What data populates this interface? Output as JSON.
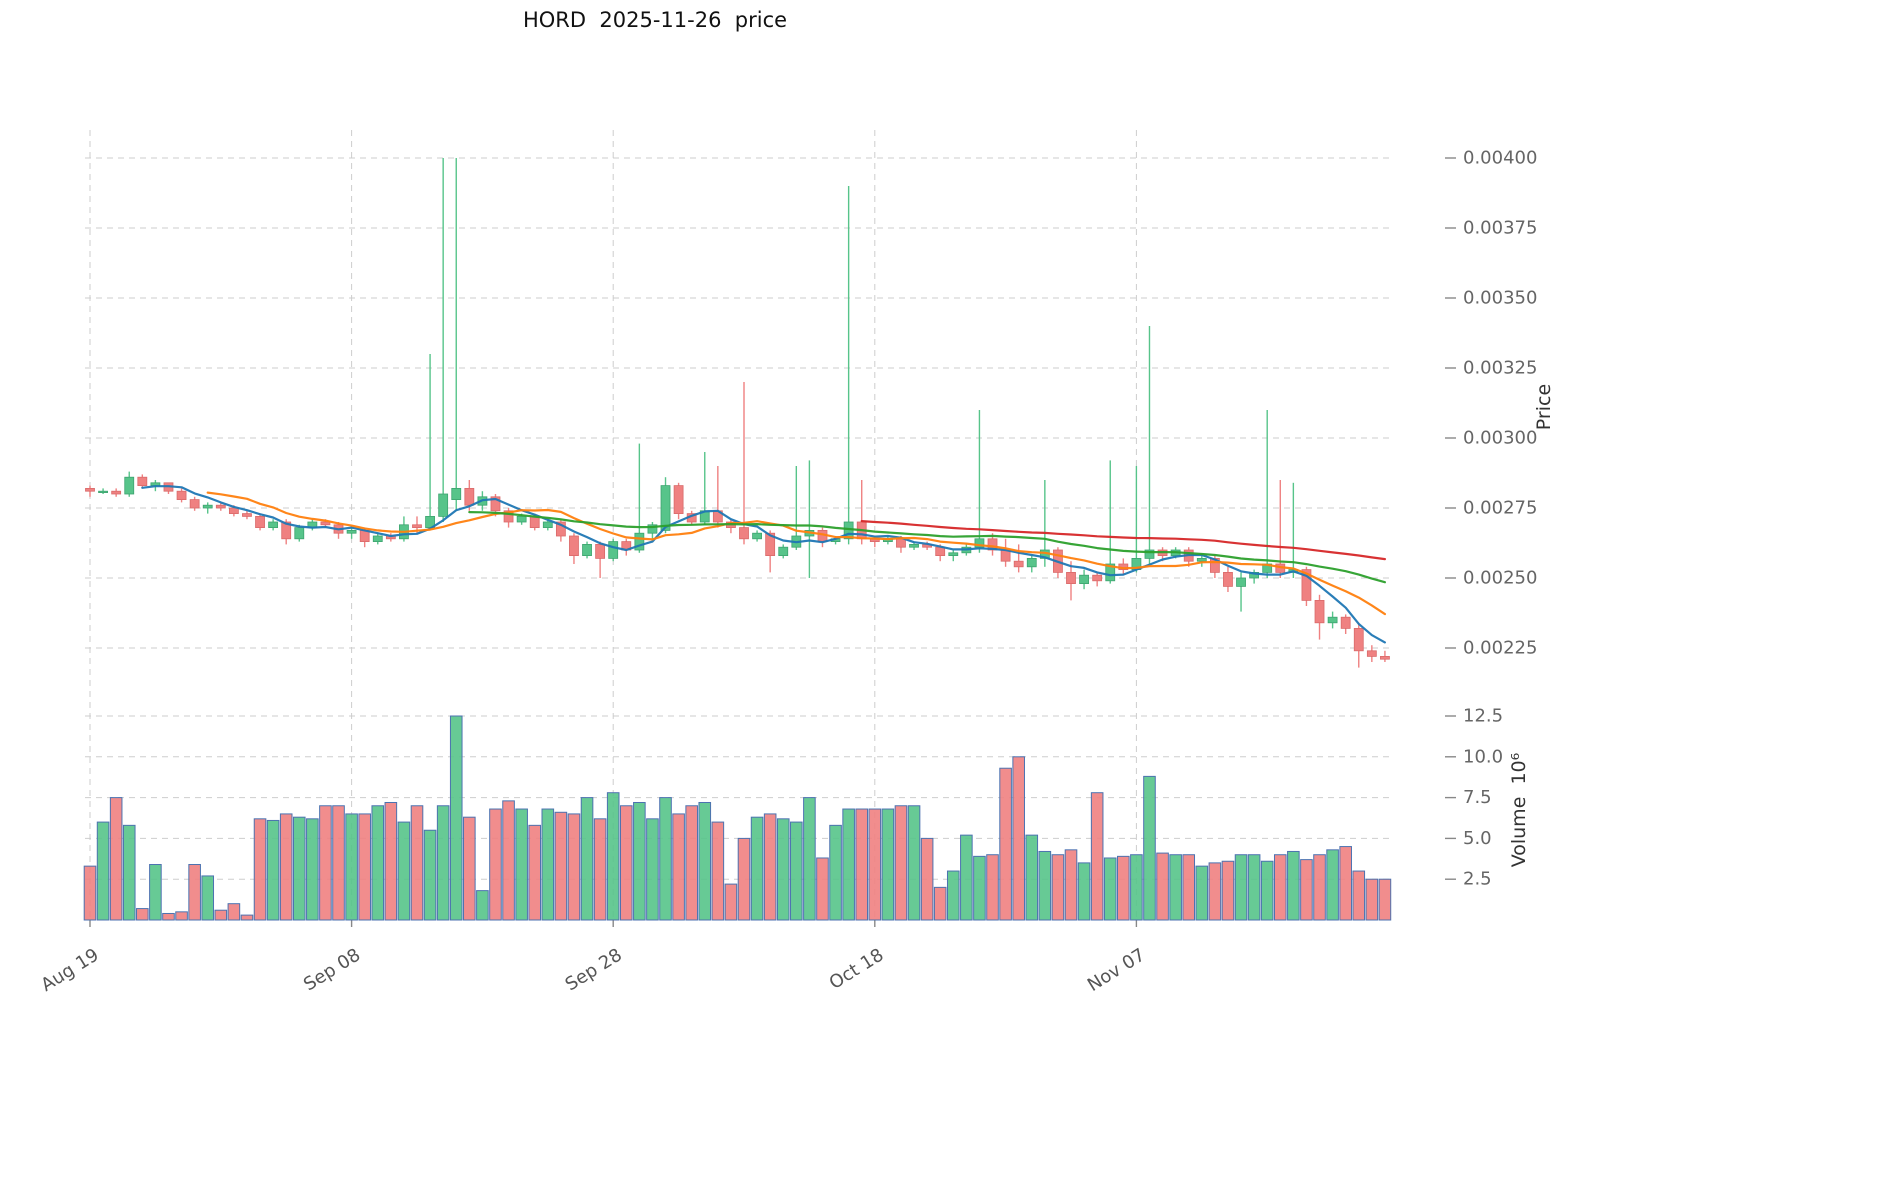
{
  "title": "HORD  2025-11-26  price",
  "axes": {
    "price_label": "Price",
    "volume_label": "Volume  10⁶",
    "price_tick_values": [
      0.004,
      0.00375,
      0.0035,
      0.00325,
      0.003,
      0.00275,
      0.0025,
      0.00225
    ],
    "price_tick_labels": [
      "0.00400",
      "0.00375",
      "0.00350",
      "0.00325",
      "0.00300",
      "0.00275",
      "0.00250",
      "0.00225"
    ],
    "volume_tick_values": [
      12.5,
      10.0,
      7.5,
      5.0,
      2.5
    ],
    "volume_tick_labels": [
      "12.5",
      "10.0",
      "7.5",
      "5.0",
      "2.5"
    ],
    "x_ticks": [
      {
        "index": 0,
        "label": "Aug 19"
      },
      {
        "index": 20,
        "label": "Sep 08"
      },
      {
        "index": 40,
        "label": "Sep 28"
      },
      {
        "index": 60,
        "label": "Oct 18"
      },
      {
        "index": 80,
        "label": "Nov 07"
      }
    ]
  },
  "chart_data": {
    "type": "candlestick",
    "title": "HORD 2025-11-26 price",
    "xlabel": "",
    "ylabel": "Price",
    "ylabel_volume": "Volume 10^6",
    "grid": true,
    "price_ylim": [
      0.00212,
      0.0041
    ],
    "volume_ylim": [
      0,
      13.5
    ],
    "volume_unit": "millions",
    "colors": {
      "up": "#57c48a",
      "down": "#ef8181",
      "up_edge": "#3da46f",
      "down_edge": "#d96a6a",
      "volume_edge": "#4c72b0",
      "grid": "#cdcdcd",
      "tick_text": "#666666",
      "ma": [
        "#1f77b4",
        "#ff7f0e",
        "#2ca02c",
        "#d62728"
      ]
    },
    "moving_averages": [
      {
        "name": "MA5",
        "window": 5,
        "color": "#1f77b4"
      },
      {
        "name": "MA10",
        "window": 10,
        "color": "#ff7f0e"
      },
      {
        "name": "MA30",
        "window": 30,
        "color": "#2ca02c"
      },
      {
        "name": "MA60",
        "window": 60,
        "color": "#d62728"
      }
    ],
    "columns": [
      "date",
      "open",
      "high",
      "low",
      "close",
      "volume_millions"
    ],
    "rows": [
      [
        "2025-08-19",
        0.00282,
        0.00283,
        0.00279,
        0.00281,
        3.3
      ],
      [
        "2025-08-20",
        0.00281,
        0.00282,
        0.0028,
        0.00281,
        6.0
      ],
      [
        "2025-08-21",
        0.00281,
        0.00282,
        0.00279,
        0.0028,
        7.5
      ],
      [
        "2025-08-22",
        0.0028,
        0.00288,
        0.00279,
        0.00286,
        5.8
      ],
      [
        "2025-08-23",
        0.00286,
        0.00287,
        0.00282,
        0.00283,
        0.7
      ],
      [
        "2025-08-24",
        0.00283,
        0.00285,
        0.00281,
        0.00284,
        3.4
      ],
      [
        "2025-08-25",
        0.00284,
        0.00284,
        0.0028,
        0.00281,
        0.4
      ],
      [
        "2025-08-26",
        0.00281,
        0.00282,
        0.00277,
        0.00278,
        0.5
      ],
      [
        "2025-08-27",
        0.00278,
        0.00279,
        0.00274,
        0.00275,
        3.4
      ],
      [
        "2025-08-28",
        0.00275,
        0.00277,
        0.00273,
        0.00276,
        2.7
      ],
      [
        "2025-08-29",
        0.00276,
        0.00277,
        0.00274,
        0.00275,
        0.6
      ],
      [
        "2025-08-30",
        0.00275,
        0.00276,
        0.00272,
        0.00273,
        1.0
      ],
      [
        "2025-08-31",
        0.00273,
        0.00274,
        0.00271,
        0.00272,
        0.3
      ],
      [
        "2025-09-01",
        0.00272,
        0.00273,
        0.00267,
        0.00268,
        6.2
      ],
      [
        "2025-09-02",
        0.00268,
        0.00271,
        0.00267,
        0.0027,
        6.1
      ],
      [
        "2025-09-03",
        0.0027,
        0.00271,
        0.00262,
        0.00264,
        6.5
      ],
      [
        "2025-09-04",
        0.00264,
        0.00269,
        0.00263,
        0.00268,
        6.3
      ],
      [
        "2025-09-05",
        0.00268,
        0.00271,
        0.00267,
        0.0027,
        6.2
      ],
      [
        "2025-09-06",
        0.0027,
        0.00271,
        0.00268,
        0.00269,
        7.0
      ],
      [
        "2025-09-07",
        0.00269,
        0.0027,
        0.00264,
        0.00266,
        7.0
      ],
      [
        "2025-09-08",
        0.00266,
        0.00268,
        0.00264,
        0.00267,
        6.5
      ],
      [
        "2025-09-09",
        0.00267,
        0.00268,
        0.00261,
        0.00263,
        6.5
      ],
      [
        "2025-09-10",
        0.00263,
        0.00266,
        0.00262,
        0.00265,
        7.0
      ],
      [
        "2025-09-11",
        0.00265,
        0.00266,
        0.00263,
        0.00264,
        7.2
      ],
      [
        "2025-09-12",
        0.00264,
        0.00272,
        0.00263,
        0.00269,
        6.0
      ],
      [
        "2025-09-13",
        0.00269,
        0.00272,
        0.00266,
        0.00268,
        7.0
      ],
      [
        "2025-09-14",
        0.00268,
        0.0033,
        0.00267,
        0.00272,
        5.5
      ],
      [
        "2025-09-15",
        0.00272,
        0.004,
        0.0027,
        0.0028,
        7.0
      ],
      [
        "2025-09-16",
        0.00278,
        0.004,
        0.00274,
        0.00282,
        12.5
      ],
      [
        "2025-09-17",
        0.00282,
        0.00285,
        0.00274,
        0.00276,
        6.3
      ],
      [
        "2025-09-18",
        0.00276,
        0.00281,
        0.00274,
        0.00279,
        1.8
      ],
      [
        "2025-09-19",
        0.00279,
        0.0028,
        0.00272,
        0.00274,
        6.8
      ],
      [
        "2025-09-20",
        0.00274,
        0.00275,
        0.00268,
        0.0027,
        7.3
      ],
      [
        "2025-09-21",
        0.0027,
        0.00273,
        0.00269,
        0.00272,
        6.8
      ],
      [
        "2025-09-22",
        0.00272,
        0.00273,
        0.00267,
        0.00268,
        5.8
      ],
      [
        "2025-09-23",
        0.00268,
        0.00271,
        0.00267,
        0.0027,
        6.8
      ],
      [
        "2025-09-24",
        0.0027,
        0.00271,
        0.00263,
        0.00265,
        6.6
      ],
      [
        "2025-09-25",
        0.00265,
        0.00266,
        0.00255,
        0.00258,
        6.5
      ],
      [
        "2025-09-26",
        0.00258,
        0.00263,
        0.00257,
        0.00262,
        7.5
      ],
      [
        "2025-09-27",
        0.00262,
        0.00263,
        0.0025,
        0.00257,
        6.2
      ],
      [
        "2025-09-28",
        0.00257,
        0.00264,
        0.00256,
        0.00263,
        7.8
      ],
      [
        "2025-09-29",
        0.00263,
        0.00264,
        0.00258,
        0.0026,
        7.0
      ],
      [
        "2025-09-30",
        0.0026,
        0.00298,
        0.00259,
        0.00266,
        7.2
      ],
      [
        "2025-10-01",
        0.00266,
        0.0027,
        0.00264,
        0.00269,
        6.2
      ],
      [
        "2025-10-02",
        0.00267,
        0.00286,
        0.00266,
        0.00283,
        7.5
      ],
      [
        "2025-10-03",
        0.00283,
        0.00284,
        0.00271,
        0.00273,
        6.5
      ],
      [
        "2025-10-04",
        0.00273,
        0.00274,
        0.00269,
        0.0027,
        7.0
      ],
      [
        "2025-10-05",
        0.0027,
        0.00295,
        0.00269,
        0.00274,
        7.2
      ],
      [
        "2025-10-06",
        0.00274,
        0.0029,
        0.00268,
        0.0027,
        6.0
      ],
      [
        "2025-10-07",
        0.0027,
        0.00271,
        0.00266,
        0.00268,
        2.2
      ],
      [
        "2025-10-08",
        0.00268,
        0.0032,
        0.00262,
        0.00264,
        5.0
      ],
      [
        "2025-10-09",
        0.00264,
        0.00267,
        0.00263,
        0.00266,
        6.3
      ],
      [
        "2025-10-10",
        0.00266,
        0.00267,
        0.00252,
        0.00258,
        6.5
      ],
      [
        "2025-10-11",
        0.00258,
        0.00262,
        0.00257,
        0.00261,
        6.2
      ],
      [
        "2025-10-12",
        0.00261,
        0.0029,
        0.0026,
        0.00265,
        6.0
      ],
      [
        "2025-10-13",
        0.00265,
        0.00292,
        0.0025,
        0.00267,
        7.5
      ],
      [
        "2025-10-14",
        0.00267,
        0.00268,
        0.00261,
        0.00263,
        3.8
      ],
      [
        "2025-10-15",
        0.00263,
        0.00265,
        0.00262,
        0.00264,
        5.8
      ],
      [
        "2025-10-16",
        0.00264,
        0.0039,
        0.00262,
        0.0027,
        6.8
      ],
      [
        "2025-10-17",
        0.0027,
        0.00285,
        0.00262,
        0.00264,
        6.8
      ],
      [
        "2025-10-18",
        0.00264,
        0.00265,
        0.00261,
        0.00263,
        6.8
      ],
      [
        "2025-10-19",
        0.00263,
        0.00265,
        0.00262,
        0.00264,
        6.8
      ],
      [
        "2025-10-20",
        0.00264,
        0.00265,
        0.00259,
        0.00261,
        7.0
      ],
      [
        "2025-10-21",
        0.00261,
        0.00263,
        0.0026,
        0.00262,
        7.0
      ],
      [
        "2025-10-22",
        0.00262,
        0.00263,
        0.0026,
        0.00261,
        5.0
      ],
      [
        "2025-10-23",
        0.00261,
        0.00262,
        0.00256,
        0.00258,
        2.0
      ],
      [
        "2025-10-24",
        0.00258,
        0.0026,
        0.00256,
        0.00259,
        3.0
      ],
      [
        "2025-10-25",
        0.00259,
        0.00262,
        0.00258,
        0.00261,
        5.2
      ],
      [
        "2025-10-26",
        0.00261,
        0.0031,
        0.00259,
        0.00264,
        3.9
      ],
      [
        "2025-10-27",
        0.00264,
        0.00266,
        0.00258,
        0.0026,
        4.0
      ],
      [
        "2025-10-28",
        0.0026,
        0.00264,
        0.00254,
        0.00256,
        9.3
      ],
      [
        "2025-10-29",
        0.00256,
        0.00262,
        0.00252,
        0.00254,
        10.0
      ],
      [
        "2025-10-30",
        0.00254,
        0.00258,
        0.00252,
        0.00257,
        5.2
      ],
      [
        "2025-10-31",
        0.00257,
        0.00285,
        0.00254,
        0.0026,
        4.2
      ],
      [
        "2025-11-01",
        0.0026,
        0.00261,
        0.0025,
        0.00252,
        4.0
      ],
      [
        "2025-11-02",
        0.00252,
        0.00256,
        0.00242,
        0.00248,
        4.3
      ],
      [
        "2025-11-03",
        0.00248,
        0.00253,
        0.00246,
        0.00251,
        3.5
      ],
      [
        "2025-11-04",
        0.00251,
        0.00252,
        0.00247,
        0.00249,
        7.8
      ],
      [
        "2025-11-05",
        0.00249,
        0.00292,
        0.00248,
        0.00255,
        3.8
      ],
      [
        "2025-11-06",
        0.00255,
        0.00257,
        0.00251,
        0.00253,
        3.9
      ],
      [
        "2025-11-07",
        0.00253,
        0.0029,
        0.00252,
        0.00257,
        4.0
      ],
      [
        "2025-11-08",
        0.00257,
        0.0034,
        0.00255,
        0.0026,
        8.8
      ],
      [
        "2025-11-09",
        0.0026,
        0.00261,
        0.00256,
        0.00258,
        4.1
      ],
      [
        "2025-11-10",
        0.00258,
        0.00261,
        0.00257,
        0.0026,
        4.0
      ],
      [
        "2025-11-11",
        0.0026,
        0.00261,
        0.00254,
        0.00256,
        4.0
      ],
      [
        "2025-11-12",
        0.00256,
        0.00258,
        0.00254,
        0.00257,
        3.3
      ],
      [
        "2025-11-13",
        0.00257,
        0.00258,
        0.0025,
        0.00252,
        3.5
      ],
      [
        "2025-11-14",
        0.00252,
        0.00254,
        0.00245,
        0.00247,
        3.6
      ],
      [
        "2025-11-15",
        0.00247,
        0.00252,
        0.00238,
        0.0025,
        4.0
      ],
      [
        "2025-11-16",
        0.0025,
        0.00253,
        0.00248,
        0.00252,
        4.0
      ],
      [
        "2025-11-17",
        0.00252,
        0.0031,
        0.0025,
        0.00255,
        3.6
      ],
      [
        "2025-11-18",
        0.00255,
        0.00285,
        0.0025,
        0.00252,
        4.0
      ],
      [
        "2025-11-19",
        0.00252,
        0.00284,
        0.0025,
        0.00253,
        4.2
      ],
      [
        "2025-11-20",
        0.00253,
        0.00254,
        0.0024,
        0.00242,
        3.7
      ],
      [
        "2025-11-21",
        0.00242,
        0.00244,
        0.00228,
        0.00234,
        4.0
      ],
      [
        "2025-11-22",
        0.00234,
        0.00238,
        0.00232,
        0.00236,
        4.3
      ],
      [
        "2025-11-23",
        0.00236,
        0.00237,
        0.0023,
        0.00232,
        4.5
      ],
      [
        "2025-11-24",
        0.00232,
        0.00234,
        0.00218,
        0.00224,
        3.0
      ],
      [
        "2025-11-25",
        0.00224,
        0.00226,
        0.0022,
        0.00222,
        2.5
      ],
      [
        "2025-11-26",
        0.00222,
        0.00224,
        0.0022,
        0.00221,
        2.5
      ]
    ]
  }
}
